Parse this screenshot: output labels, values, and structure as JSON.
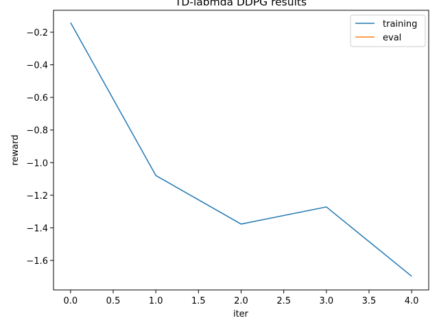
{
  "chart_data": {
    "type": "line",
    "title": "TD-labmda DDPG results",
    "x_label": "iter",
    "y_label": "reward",
    "x": [
      0,
      1,
      2,
      3,
      4
    ],
    "series": [
      {
        "name": "training",
        "color": "#1f77b4",
        "values": [
          -0.141,
          -1.079,
          -1.377,
          -1.272,
          -1.697
        ]
      },
      {
        "name": "eval",
        "color": "#ff7f0e",
        "values": [
          null,
          null,
          null,
          null,
          null
        ]
      }
    ],
    "xlim": [
      -0.2,
      4.2
    ],
    "xticks": [
      {
        "value": 0,
        "label": "0.0"
      },
      {
        "value": 0.5,
        "label": "0.5"
      },
      {
        "value": 1,
        "label": "1.0"
      },
      {
        "value": 1.5,
        "label": "1.5"
      },
      {
        "value": 2,
        "label": "2.0"
      },
      {
        "value": 2.5,
        "label": "2.5"
      },
      {
        "value": 3,
        "label": "3.0"
      },
      {
        "value": 3.5,
        "label": "3.5"
      },
      {
        "value": 4,
        "label": "4.0"
      }
    ],
    "ylim": [
      -1.781,
      -0.0655
    ],
    "yticks": [
      {
        "value": -1.6,
        "label": "−1.6"
      },
      {
        "value": -1.4,
        "label": "−1.4"
      },
      {
        "value": -1.2,
        "label": "−1.2"
      },
      {
        "value": -1.0,
        "label": "−1.0"
      },
      {
        "value": -0.8,
        "label": "−0.8"
      },
      {
        "value": -0.6,
        "label": "−0.6"
      },
      {
        "value": -0.4,
        "label": "−0.4"
      },
      {
        "value": -0.2,
        "label": "−0.2"
      }
    ],
    "legend": "upper right",
    "grid": false
  }
}
